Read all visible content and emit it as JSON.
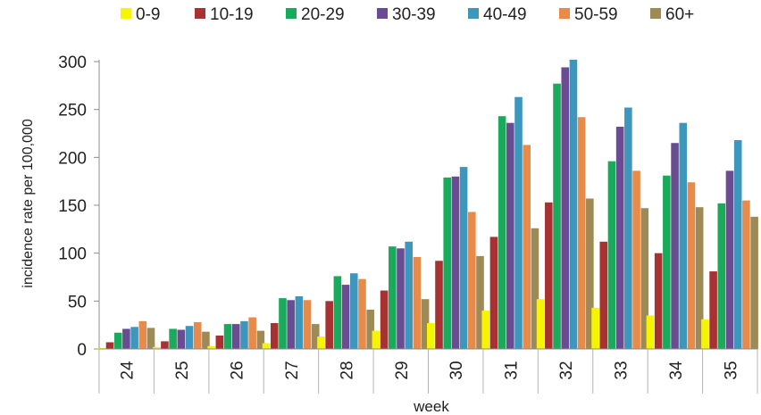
{
  "chart_data": {
    "type": "bar",
    "title": "",
    "xlabel": "week",
    "ylabel": "incidence rate per 100,000",
    "categories": [
      "24",
      "25",
      "26",
      "27",
      "28",
      "29",
      "30",
      "31",
      "32",
      "33",
      "34",
      "35"
    ],
    "ylim": [
      0,
      300
    ],
    "yticks": [
      0,
      50,
      100,
      150,
      200,
      250,
      300
    ],
    "grid": false,
    "legend_position": "top",
    "series": [
      {
        "name": "0-9",
        "color": "#f5f500",
        "values": [
          1,
          2,
          3,
          6,
          13,
          19,
          27,
          40,
          52,
          43,
          35,
          31
        ]
      },
      {
        "name": "10-19",
        "color": "#a83232",
        "values": [
          7,
          8,
          14,
          27,
          50,
          61,
          92,
          117,
          153,
          112,
          100,
          81
        ]
      },
      {
        "name": "20-29",
        "color": "#1aaa5c",
        "values": [
          17,
          21,
          26,
          53,
          76,
          107,
          179,
          243,
          277,
          196,
          181,
          152
        ]
      },
      {
        "name": "30-39",
        "color": "#6a4c93",
        "values": [
          21,
          20,
          26,
          51,
          67,
          105,
          180,
          236,
          294,
          232,
          215,
          186
        ]
      },
      {
        "name": "40-49",
        "color": "#3d97bd",
        "values": [
          23,
          24,
          29,
          55,
          79,
          112,
          190,
          263,
          302,
          252,
          236,
          218
        ]
      },
      {
        "name": "50-59",
        "color": "#e88a4a",
        "values": [
          29,
          28,
          33,
          51,
          73,
          96,
          143,
          213,
          242,
          186,
          174,
          155
        ]
      },
      {
        "name": "60+",
        "color": "#9e8a55",
        "values": [
          22,
          18,
          19,
          26,
          41,
          52,
          97,
          126,
          157,
          147,
          148,
          138
        ]
      }
    ]
  }
}
